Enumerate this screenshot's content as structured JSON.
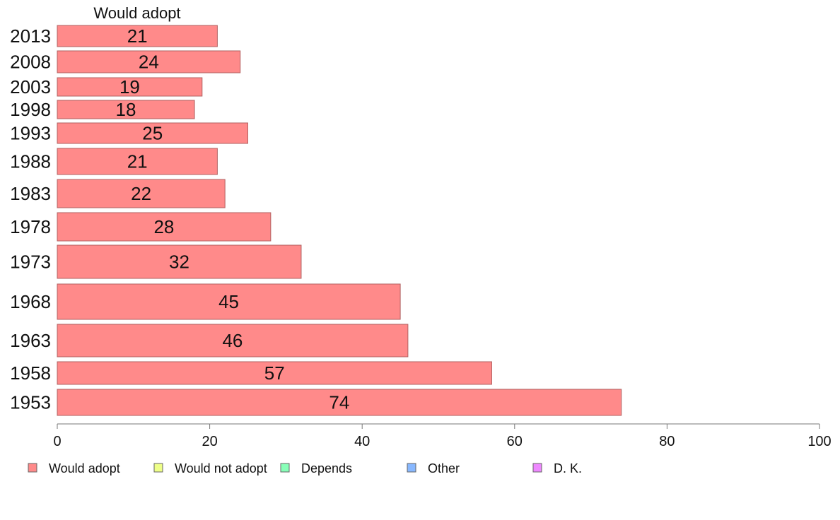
{
  "chart_data": {
    "type": "bar",
    "orientation": "horizontal",
    "series_title": "Would adopt",
    "categories": [
      "2013",
      "2008",
      "2003",
      "1998",
      "1993",
      "1988",
      "1983",
      "1978",
      "1973",
      "1968",
      "1963",
      "1958",
      "1953"
    ],
    "series": [
      {
        "name": "Would adopt",
        "values": [
          21,
          24,
          19,
          18,
          25,
          21,
          22,
          28,
          32,
          45,
          46,
          57,
          74
        ]
      }
    ],
    "xlim": [
      0,
      100
    ],
    "xticks": [
      0,
      20,
      40,
      60,
      80,
      100
    ],
    "legend_position": "bottom",
    "legend": [
      {
        "label": "Would adopt",
        "color": "#ff8a8a"
      },
      {
        "label": "Would not adopt",
        "color": "#eeff88"
      },
      {
        "label": "Depends",
        "color": "#88ffb8"
      },
      {
        "label": "Other",
        "color": "#88b8ff"
      },
      {
        "label": "D. K.",
        "color": "#ee88ff"
      }
    ],
    "bar_color": "#ff8a8a",
    "bar_stroke": "#b06060",
    "axis_color": "#777777"
  }
}
